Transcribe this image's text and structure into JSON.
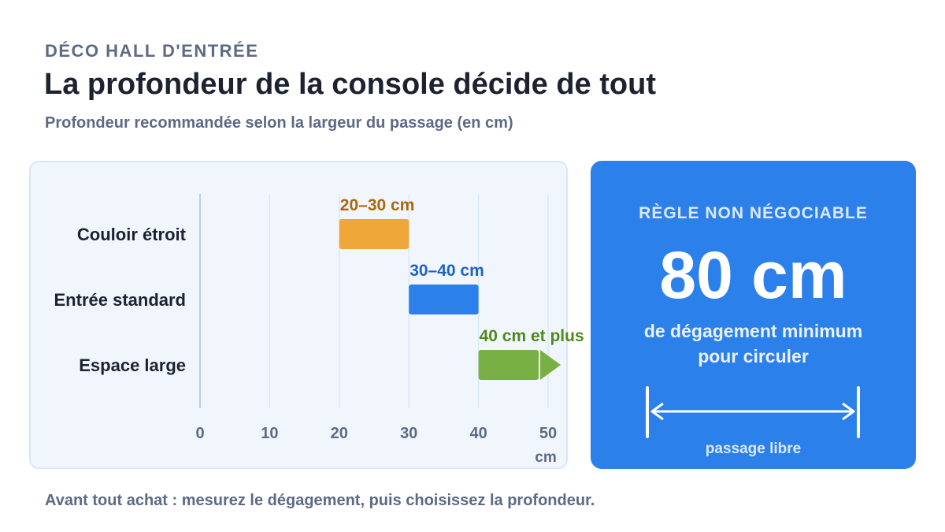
{
  "header": {
    "eyebrow": "DÉCO HALL D'ENTRÉE",
    "title": "La profondeur de la console décide de tout",
    "subtitle": "Profondeur recommandée selon la largeur du passage (en cm)"
  },
  "chart_data": {
    "type": "bar",
    "orientation": "horizontal",
    "categories": [
      "Couloir étroit",
      "Entrée standard",
      "Espace large"
    ],
    "ranges": [
      {
        "category": "Couloir étroit",
        "start": 20,
        "end": 30,
        "label": "20–30 cm",
        "color": "#f0a73a",
        "label_color": "#a8680c",
        "open_ended": false
      },
      {
        "category": "Entrée standard",
        "start": 30,
        "end": 40,
        "label": "30–40 cm",
        "color": "#2b80ea",
        "label_color": "#1f62c2",
        "open_ended": false
      },
      {
        "category": "Espace large",
        "start": 40,
        "end": 50,
        "label": "40 cm et plus",
        "color": "#78b043",
        "label_color": "#4f8a1f",
        "open_ended": true
      }
    ],
    "x_ticks": [
      0,
      10,
      20,
      30,
      40,
      50
    ],
    "xlim": [
      0,
      50
    ],
    "x_unit": "cm",
    "grid": true
  },
  "rule": {
    "label": "RÈGLE NON NÉGOCIABLE",
    "value": "80 cm",
    "desc_line1": "de dégagement minimum",
    "desc_line2": "pour circuler",
    "caption": "passage libre",
    "icon": "double-arrow-icon"
  },
  "footer": {
    "text": "Avant tout achat : mesurez le dégagement, puis choisissez la profondeur."
  }
}
